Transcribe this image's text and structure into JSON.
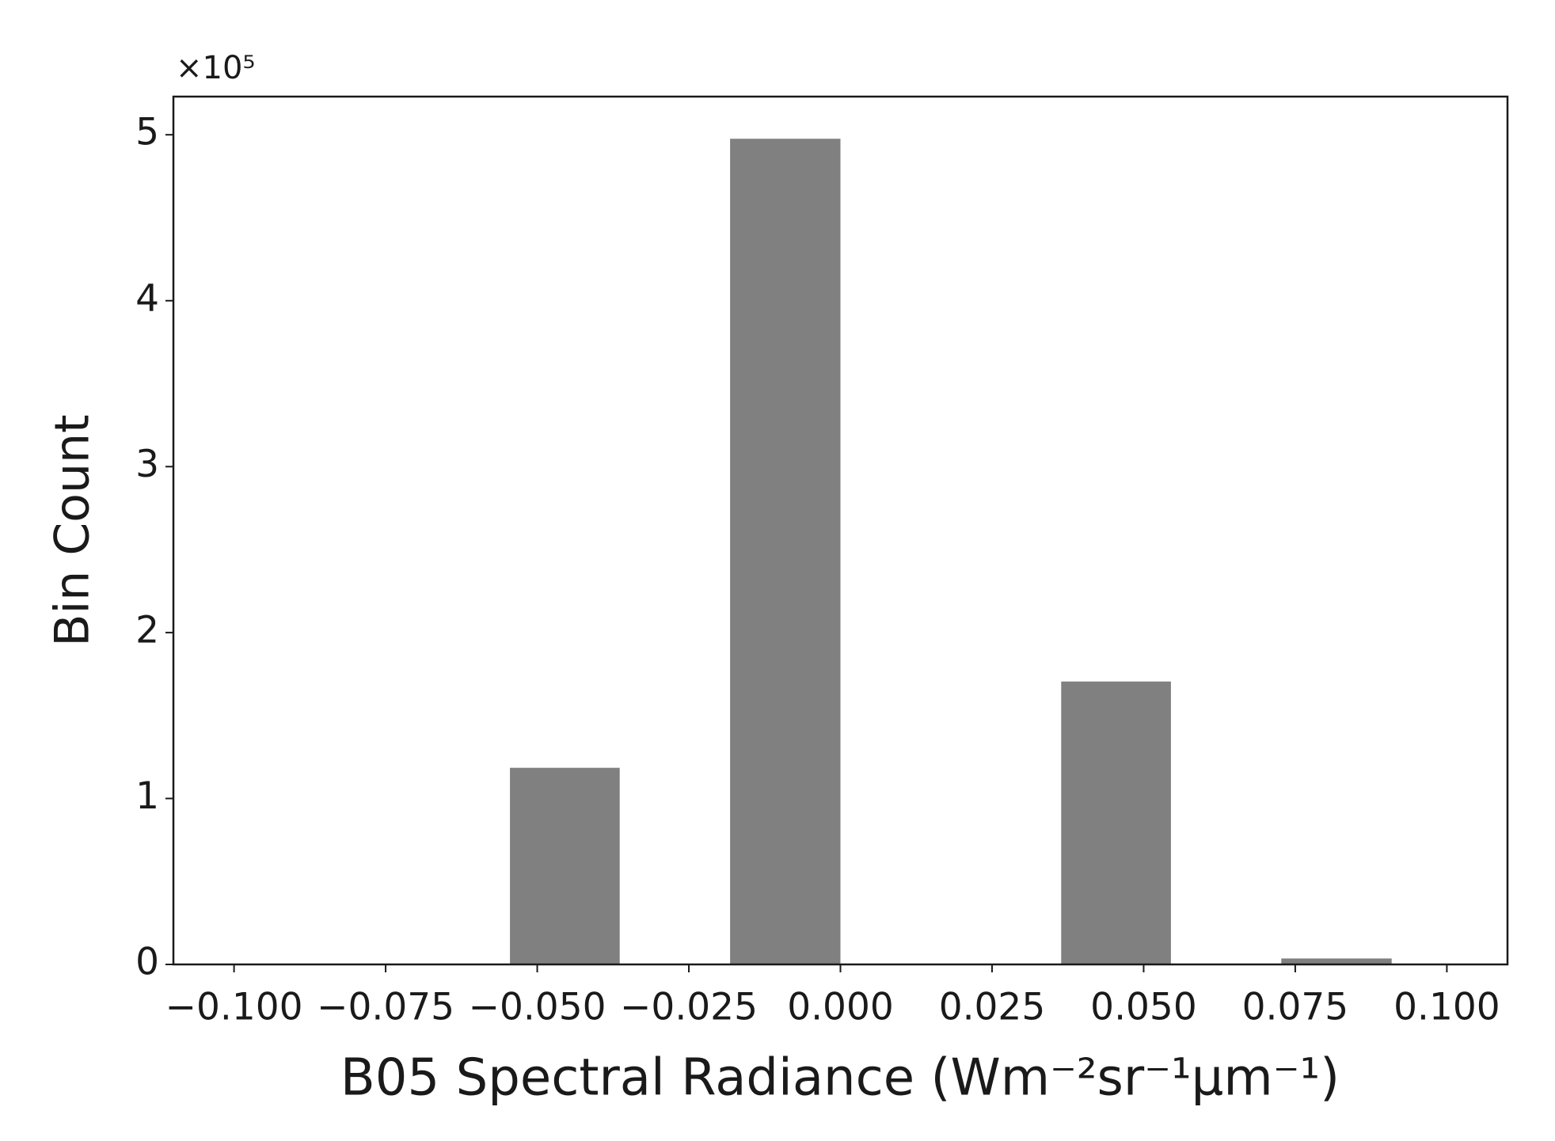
{
  "chart_data": {
    "type": "histogram",
    "x_label": "B05 Spectral Radiance (Wm⁻²sr⁻¹μm⁻¹)",
    "y_label": "Bin Count",
    "y_offset_label": "×10⁵",
    "bins": [
      -0.0545,
      -0.0364,
      -0.0182,
      0.0,
      0.0182,
      0.0364,
      0.0545,
      0.0727,
      0.0909
    ],
    "values": [
      118500,
      0,
      497600,
      0,
      0,
      170500,
      0,
      3600
    ],
    "color": "#808080",
    "xlim": [
      -0.11,
      0.11
    ],
    "ylim": [
      0,
      523000
    ],
    "xticks": [
      {
        "value": -0.1,
        "label": "−0.100"
      },
      {
        "value": -0.075,
        "label": "−0.075"
      },
      {
        "value": -0.05,
        "label": "−0.050"
      },
      {
        "value": -0.025,
        "label": "−0.025"
      },
      {
        "value": 0,
        "label": "0.000"
      },
      {
        "value": 0.025,
        "label": "0.025"
      },
      {
        "value": 0.05,
        "label": "0.050"
      },
      {
        "value": 0.075,
        "label": "0.075"
      },
      {
        "value": 0.1,
        "label": "0.100"
      }
    ],
    "yticks": [
      0,
      {
        "value": 100000,
        "label": "1"
      },
      {
        "value": 200000,
        "label": "2"
      },
      {
        "value": 300000,
        "label": "3"
      },
      {
        "value": 400000,
        "label": "4"
      },
      {
        "value": 500000,
        "label": "5"
      }
    ],
    "grid": false
  }
}
